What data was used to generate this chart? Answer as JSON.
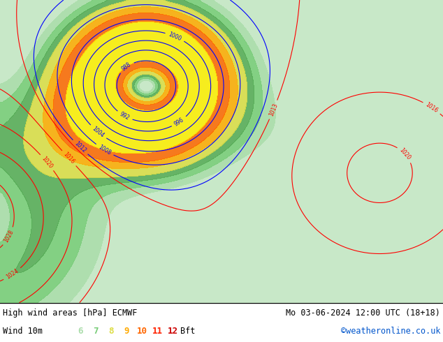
{
  "title_left": "High wind areas [hPa] ECMWF",
  "title_right": "Mo 03-06-2024 12:00 UTC (18+18)",
  "subtitle_left": "Wind 10m",
  "subtitle_right": "©weatheronline.co.uk",
  "legend_labels": [
    "6",
    "7",
    "8",
    "9",
    "10",
    "11",
    "12",
    "Bft"
  ],
  "legend_colors": [
    "#aaddaa",
    "#77cc77",
    "#dddd44",
    "#ffaa00",
    "#ff6600",
    "#ff2200",
    "#cc0000"
  ],
  "bg_color": "#ffffff",
  "land_color": "#c8e8c8",
  "sea_color": "#e8e8e8",
  "map_extent": [
    -25,
    45,
    30,
    72
  ],
  "figsize": [
    6.34,
    4.9
  ],
  "dpi": 100,
  "bottom_bg": "#d8d8d8",
  "font_size_bottom": 8.5,
  "font_size_legend": 9,
  "copyright_color": "#0055cc"
}
